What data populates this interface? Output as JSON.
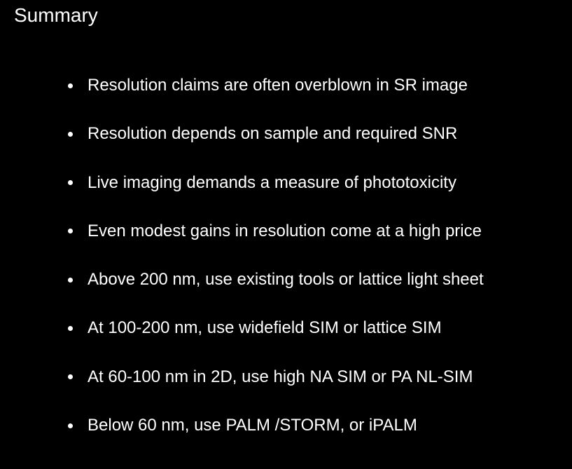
{
  "slide": {
    "title": "Summary",
    "background_color": "#000000",
    "text_color": "#ffffff",
    "bullets": [
      "Resolution claims are often overblown in SR image",
      "Resolution depends on sample and required SNR",
      "Live imaging demands a measure of phototoxicity",
      "Even modest gains in resolution come at a high price",
      "Above 200 nm, use existing tools or lattice light sheet",
      "At 100-200 nm, use widefield SIM or lattice SIM",
      "At 60-100 nm in 2D, use high NA SIM or PA NL-SIM",
      "Below 60 nm, use PALM /STORM, or iPALM"
    ]
  }
}
